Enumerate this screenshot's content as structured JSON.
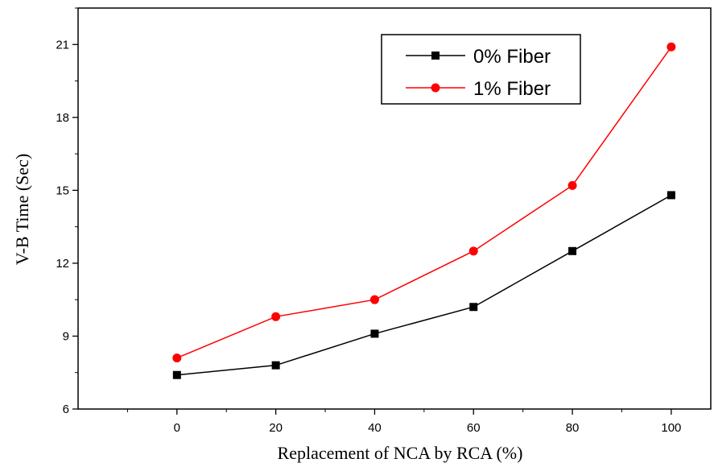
{
  "chart_data": {
    "type": "line",
    "title": "",
    "xlabel": "Replacement of NCA by RCA (%)",
    "ylabel": "V-B Time (Sec)",
    "x": [
      0,
      20,
      40,
      60,
      80,
      100
    ],
    "xticks": [
      0,
      20,
      40,
      60,
      80,
      100
    ],
    "yticks": [
      6,
      9,
      12,
      15,
      18,
      21
    ],
    "xlim": [
      -20,
      108
    ],
    "ylim": [
      6,
      22.5
    ],
    "grid": false,
    "legend_position": "top-right",
    "series": [
      {
        "name": "0% Fiber",
        "values": [
          7.4,
          7.8,
          9.1,
          10.2,
          12.5,
          14.8
        ],
        "color": "#000000",
        "marker": "square"
      },
      {
        "name": "1% Fiber",
        "values": [
          8.1,
          9.8,
          10.5,
          12.5,
          15.2,
          20.9
        ],
        "color": "#ff0000",
        "marker": "circle"
      }
    ]
  }
}
